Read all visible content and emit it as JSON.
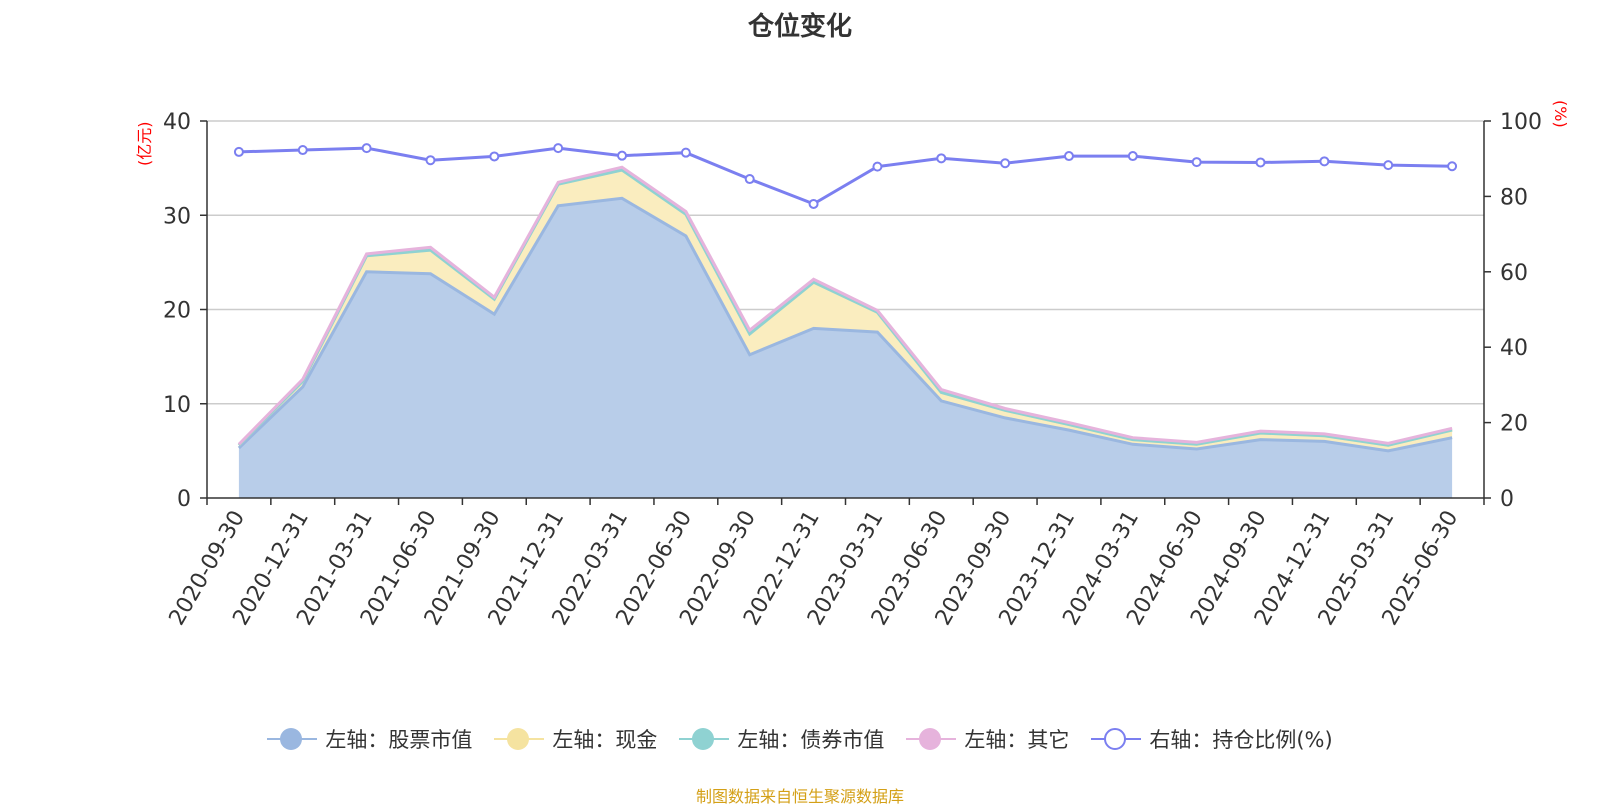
{
  "chart_data": {
    "type": "area",
    "title": "仓位变化",
    "left_axis_unit": "(亿元)",
    "right_axis_unit": "(%)",
    "source": "制图数据来自恒生聚源数据库",
    "x": [
      "2020-09-30",
      "2020-12-31",
      "2021-03-31",
      "2021-06-30",
      "2021-09-30",
      "2021-12-31",
      "2022-03-31",
      "2022-06-30",
      "2022-09-30",
      "2022-12-31",
      "2023-03-31",
      "2023-06-30",
      "2023-09-30",
      "2023-12-31",
      "2024-03-31",
      "2024-06-30",
      "2024-09-30",
      "2024-12-31",
      "2025-03-31",
      "2025-06-30"
    ],
    "ylim_left": [
      0,
      40
    ],
    "yticks_left": [
      0,
      10,
      20,
      30,
      40
    ],
    "ylim_right": [
      0,
      100
    ],
    "yticks_right": [
      0,
      20,
      40,
      60,
      80,
      100
    ],
    "grid": true,
    "legend_position": "bottom",
    "series": [
      {
        "name": "左轴：股票市值",
        "axis": "left",
        "stack": true,
        "color": "#9ab7e0",
        "fill": "#b8cde9",
        "values": [
          5.3,
          11.8,
          24.0,
          23.8,
          19.5,
          31.0,
          31.8,
          27.8,
          15.2,
          18.0,
          17.6,
          10.3,
          8.5,
          7.2,
          5.7,
          5.2,
          6.2,
          6.0,
          5.0,
          6.4
        ]
      },
      {
        "name": "左轴：现金",
        "axis": "left",
        "stack": true,
        "color": "#f5e3a0",
        "fill": "#faedbf",
        "values": [
          0.3,
          0.6,
          1.7,
          2.5,
          1.6,
          2.3,
          3.0,
          2.3,
          2.2,
          4.9,
          2.1,
          0.9,
          0.8,
          0.6,
          0.5,
          0.5,
          0.7,
          0.6,
          0.6,
          0.8
        ]
      },
      {
        "name": "左轴：债券市值",
        "axis": "left",
        "stack": true,
        "color": "#8fd2d2",
        "fill": "#b8e3e3",
        "values": [
          0,
          0,
          0,
          0,
          0,
          0,
          0,
          0,
          0,
          0,
          0,
          0,
          0,
          0,
          0,
          0,
          0,
          0,
          0,
          0
        ]
      },
      {
        "name": "左轴：其它",
        "axis": "left",
        "stack": true,
        "color": "#e6b3dc",
        "fill": "#efcde8",
        "values": [
          0.1,
          0.2,
          0.2,
          0.3,
          0.2,
          0.2,
          0.3,
          0.3,
          0.4,
          0.3,
          0.2,
          0.3,
          0.2,
          0.2,
          0.2,
          0.2,
          0.2,
          0.2,
          0.2,
          0.2
        ]
      },
      {
        "name": "右轴：持仓比例(%)",
        "axis": "right",
        "stack": false,
        "color": "#7b7ff0",
        "values": [
          91.8,
          92.3,
          92.8,
          89.6,
          90.6,
          92.8,
          90.8,
          91.6,
          84.6,
          78.0,
          87.9,
          90.1,
          88.8,
          90.7,
          90.7,
          89.1,
          89.0,
          89.3,
          88.3,
          88.0
        ]
      }
    ]
  }
}
